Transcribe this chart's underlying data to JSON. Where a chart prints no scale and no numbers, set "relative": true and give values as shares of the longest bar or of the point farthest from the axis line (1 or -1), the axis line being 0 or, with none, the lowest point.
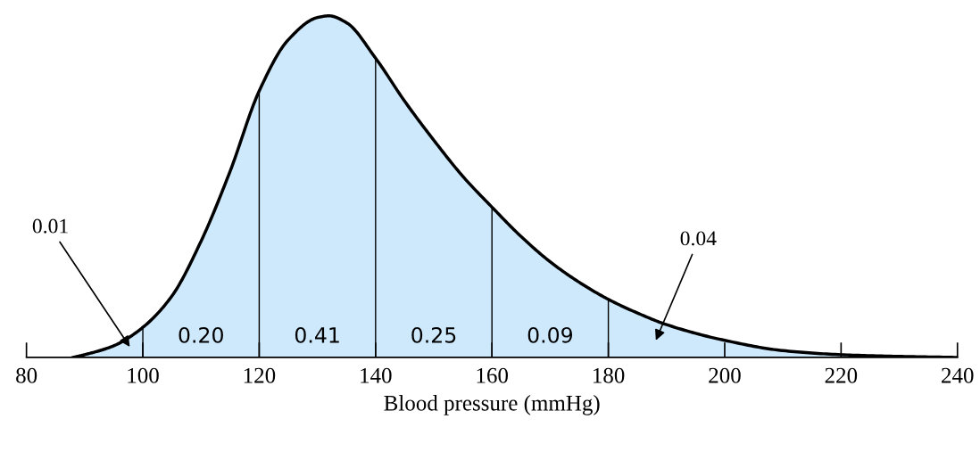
{
  "chart_data": {
    "type": "area",
    "relative": true,
    "xlabel": "Blood pressure (mmHg)",
    "x": [
      88,
      90,
      95,
      100,
      105,
      110,
      115,
      120,
      125,
      130,
      132,
      135,
      140,
      145,
      150,
      155,
      160,
      165,
      170,
      175,
      180,
      185,
      190,
      200,
      210,
      220,
      230,
      240
    ],
    "series": [
      {
        "color": "#cde9fb",
        "values": [
          0,
          0.008,
          0.034,
          0.088,
          0.18,
          0.34,
          0.545,
          0.78,
          0.93,
          0.995,
          1.0,
          0.98,
          0.876,
          0.75,
          0.636,
          0.53,
          0.44,
          0.354,
          0.28,
          0.22,
          0.17,
          0.13,
          0.096,
          0.05,
          0.02,
          0.008,
          0.003,
          0
        ]
      }
    ],
    "xlim": [
      80,
      240
    ],
    "xticks": [
      80,
      100,
      120,
      140,
      160,
      180,
      200,
      220,
      240
    ],
    "ref_lines": [
      {
        "axis": "x",
        "value": 100,
        "color": "#000000"
      },
      {
        "axis": "x",
        "value": 120,
        "color": "#000000"
      },
      {
        "axis": "x",
        "value": 140,
        "color": "#000000"
      },
      {
        "axis": "x",
        "value": 160,
        "color": "#000000"
      },
      {
        "axis": "x",
        "value": 180,
        "color": "#000000"
      }
    ],
    "annotations": [
      "0.01",
      "0.20",
      "0.41",
      "0.25",
      "0.09",
      "0.04"
    ],
    "grid": false
  }
}
